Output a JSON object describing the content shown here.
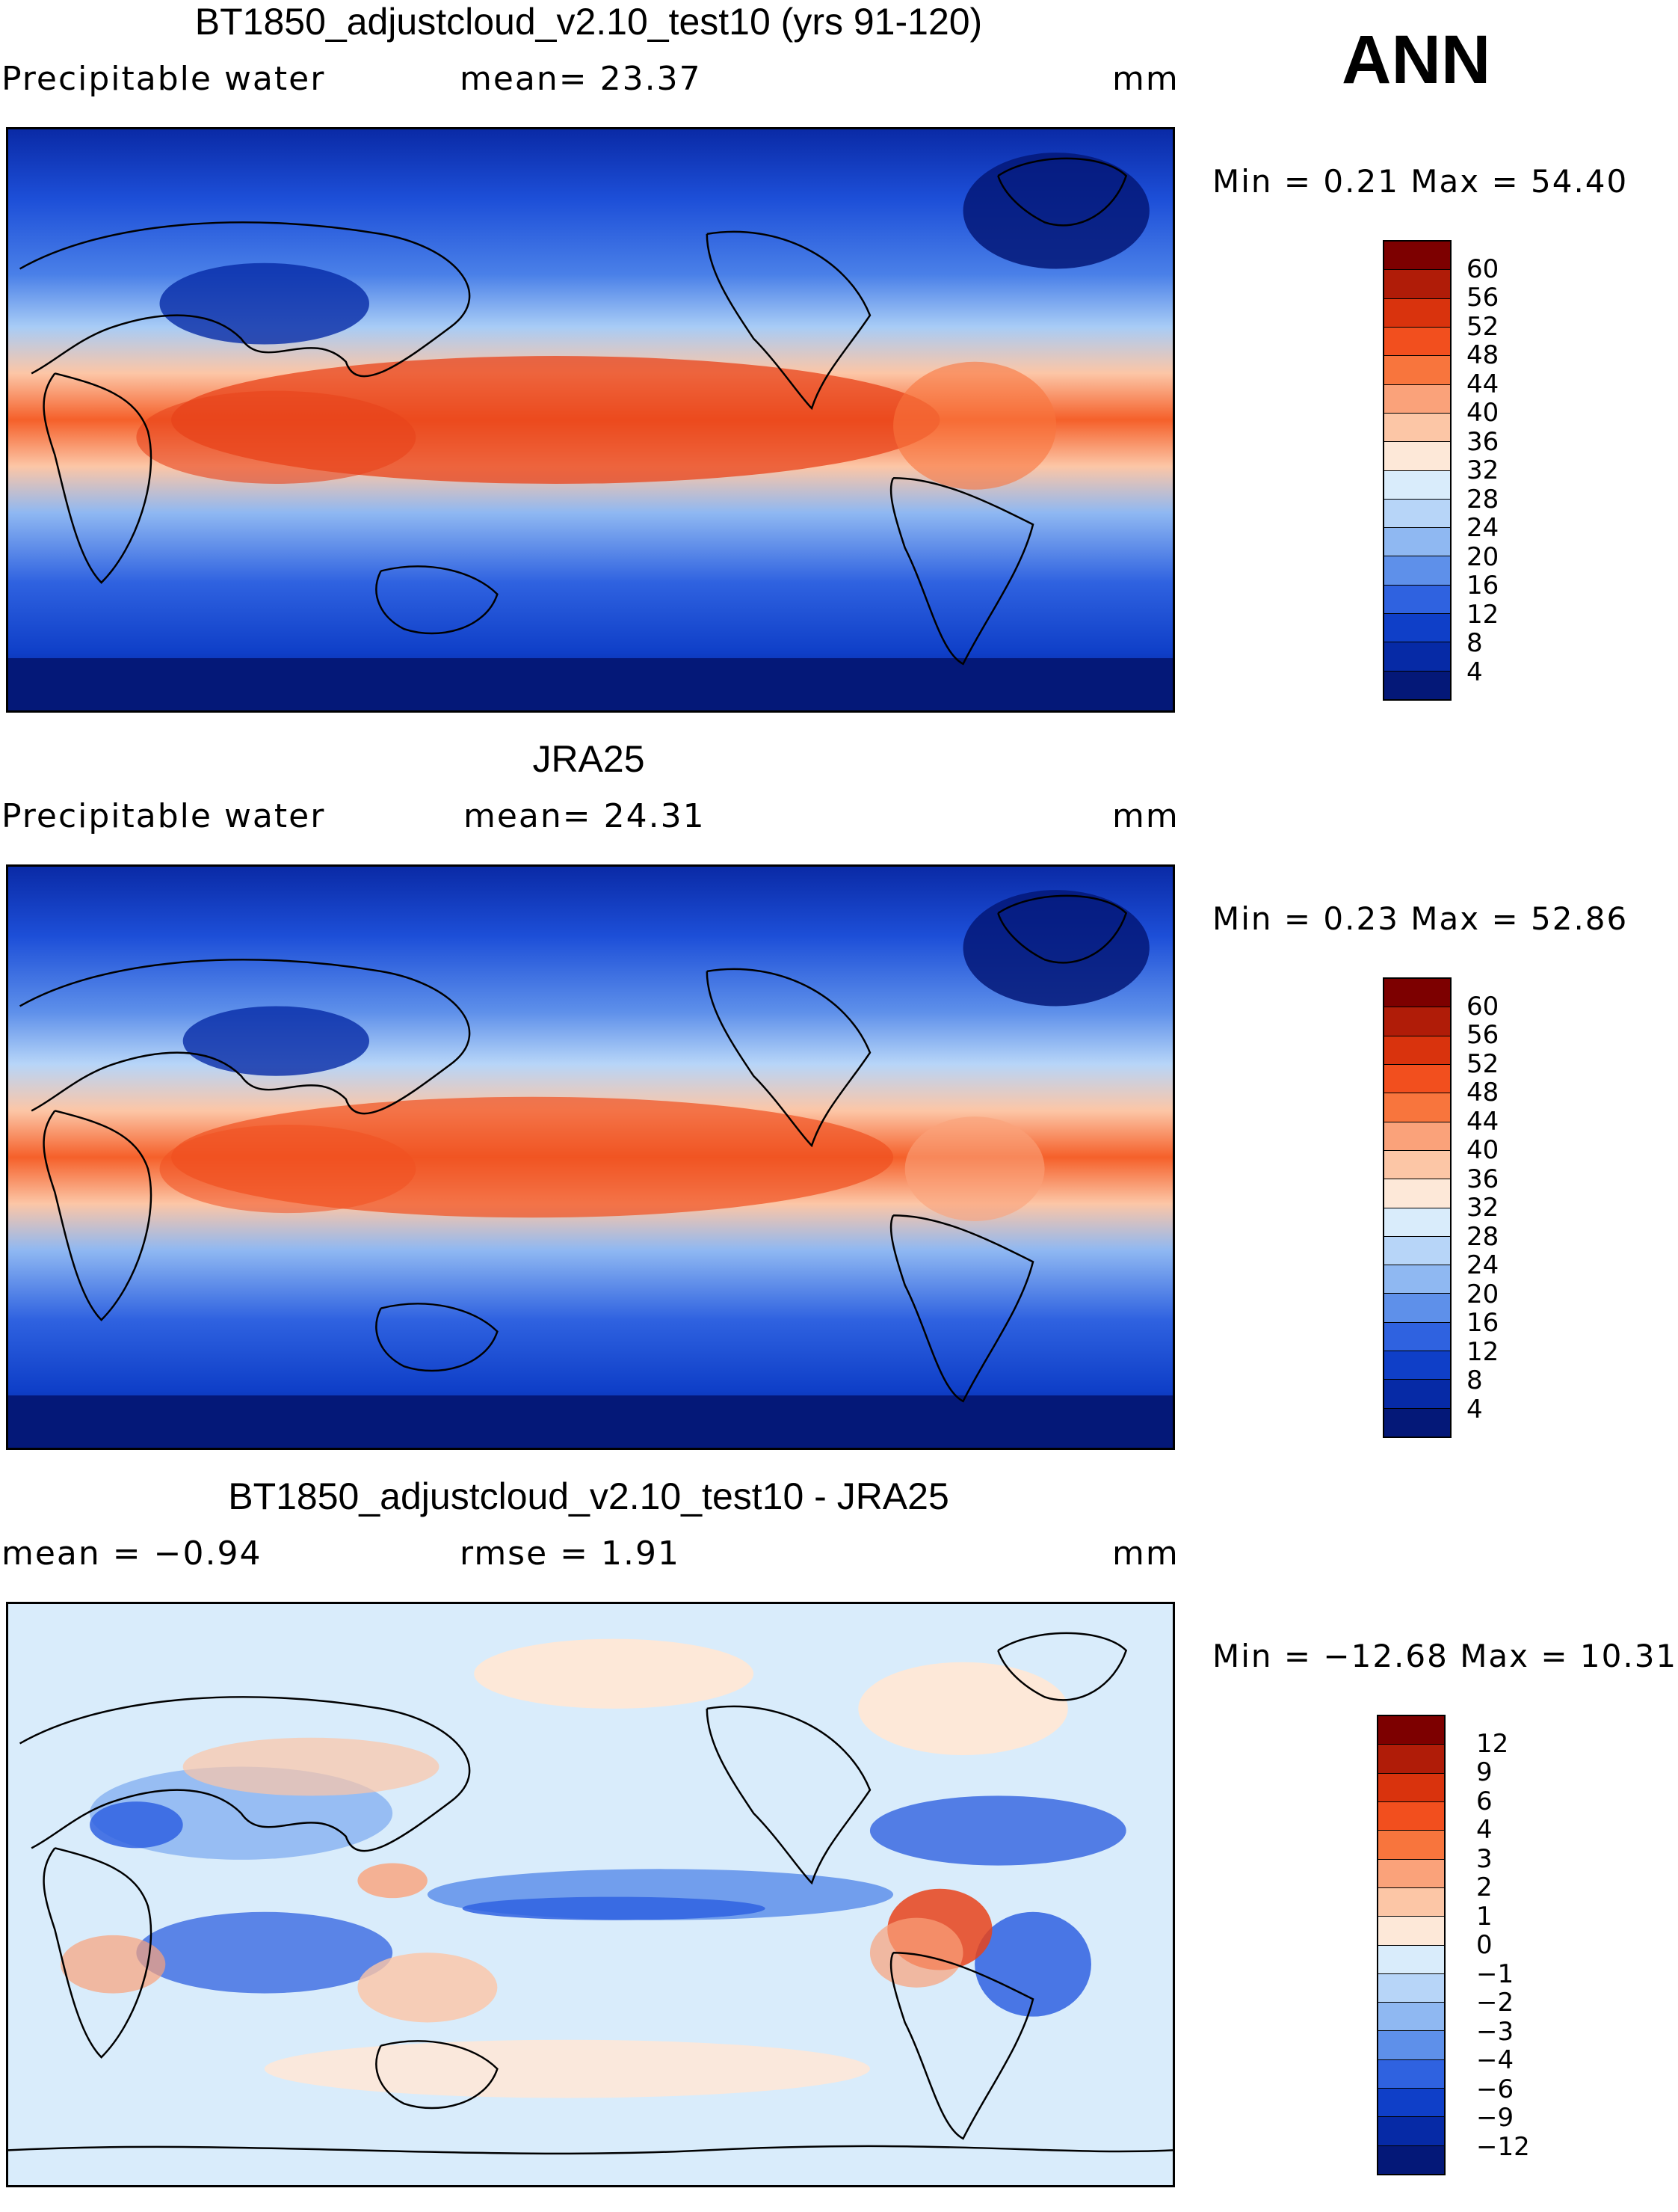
{
  "season": "ANN",
  "panels": [
    {
      "title": "BT1850_adjustcloud_v2.10_test10 (yrs 91-120)",
      "field_label": "Precipitable water",
      "stat1": "mean=  23.37",
      "stat2": "",
      "units": "mm",
      "minmax": "Min =    0.21  Max =   54.40",
      "colorbar_labels": [
        "60",
        "56",
        "52",
        "48",
        "44",
        "40",
        "36",
        "32",
        "28",
        "24",
        "20",
        "16",
        "12",
        "8",
        "4"
      ],
      "colorbar_colors": [
        "#7d0000",
        "#b01c08",
        "#d9330d",
        "#f24f1e",
        "#f8753d",
        "#faa27a",
        "#fcc6a6",
        "#fde8d8",
        "#d9ecfb",
        "#b7d5f8",
        "#8fb8f2",
        "#5e90ea",
        "#2f62e0",
        "#0f3fc8",
        "#062aa6",
        "#041878"
      ],
      "map_style": "model"
    },
    {
      "title": "JRA25",
      "field_label": "Precipitable water",
      "stat1": "mean=  24.31",
      "stat2": "",
      "units": "mm",
      "minmax": "Min =    0.23  Max =   52.86",
      "colorbar_labels": [
        "60",
        "56",
        "52",
        "48",
        "44",
        "40",
        "36",
        "32",
        "28",
        "24",
        "20",
        "16",
        "12",
        "8",
        "4"
      ],
      "colorbar_colors": [
        "#7d0000",
        "#b01c08",
        "#d9330d",
        "#f24f1e",
        "#f8753d",
        "#faa27a",
        "#fcc6a6",
        "#fde8d8",
        "#d9ecfb",
        "#b7d5f8",
        "#8fb8f2",
        "#5e90ea",
        "#2f62e0",
        "#0f3fc8",
        "#062aa6",
        "#041878"
      ],
      "map_style": "obs"
    },
    {
      "title": "BT1850_adjustcloud_v2.10_test10 - JRA25",
      "field_label": "mean =   −0.94",
      "stat1": "rmse =    1.91",
      "stat2": "",
      "units": "mm",
      "minmax": "Min = −12.68  Max =   10.31",
      "colorbar_labels": [
        "12",
        "9",
        "6",
        "4",
        "3",
        "2",
        "1",
        "0",
        "−1",
        "−2",
        "−3",
        "−4",
        "−6",
        "−9",
        "−12"
      ],
      "colorbar_colors": [
        "#7d0000",
        "#b01c08",
        "#d9330d",
        "#f24f1e",
        "#f8753d",
        "#faa27a",
        "#fcc6a6",
        "#fde8d8",
        "#d9ecfb",
        "#b7d5f8",
        "#8fb8f2",
        "#5e90ea",
        "#2f62e0",
        "#0f3fc8",
        "#062aa6",
        "#041878"
      ],
      "map_style": "diff"
    }
  ]
}
